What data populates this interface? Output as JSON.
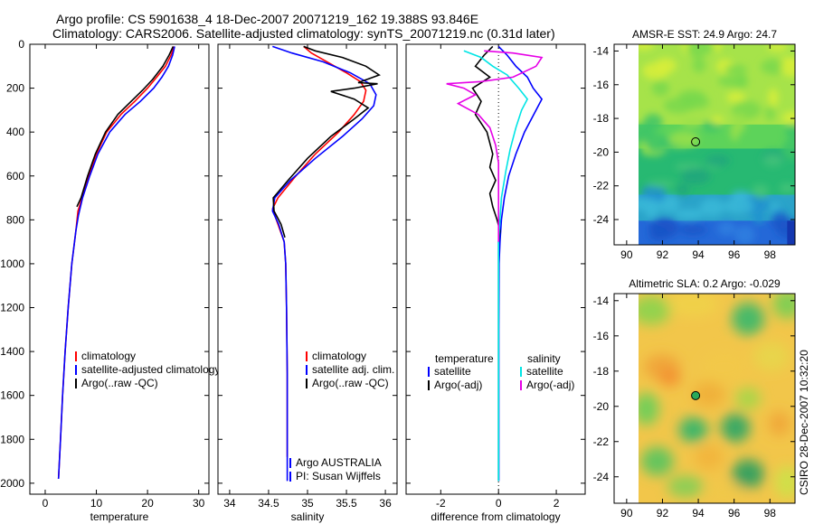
{
  "header": {
    "line1": "Argo profile: CS 5901638_4 18-Dec-2007 20071219_162 19.388S 93.846E",
    "line2": "Climatology: CARS2006. Satellite-adjusted climatology: synTS_20071219.nc (0.31d later)"
  },
  "side_text": "CSIRO 28-Dec-2007 10:32:20",
  "colors": {
    "climatology": "#ff0000",
    "satellite": "#0000ff",
    "argo": "#000000",
    "satellite_diff_salinity": "#00e5e5",
    "argo_diff_salinity": "#e600e6"
  },
  "chart_data": [
    {
      "type": "line",
      "xlabel": "temperature",
      "ylabel": "",
      "xlim": [
        -3,
        32
      ],
      "ylim": [
        2050,
        0
      ],
      "xticks": [
        "0",
        "10",
        "20",
        "30"
      ],
      "yticks": [
        "0",
        "200",
        "400",
        "600",
        "800",
        "1000",
        "1200",
        "1400",
        "1600",
        "1800",
        "2000"
      ],
      "legend": [
        "climatology",
        "satellite-adjusted climatology",
        "Argo(..raw -QC)"
      ],
      "legend_location": "lower-right",
      "series": [
        {
          "name": "climatology",
          "color": "#ff0000",
          "points": [
            [
              25.2,
              10
            ],
            [
              24.6,
              50
            ],
            [
              23.5,
              100
            ],
            [
              21.8,
              150
            ],
            [
              20.0,
              200
            ],
            [
              17.5,
              260
            ],
            [
              14.8,
              320
            ],
            [
              12.0,
              400
            ],
            [
              10.0,
              500
            ],
            [
              8.5,
              600
            ],
            [
              7.2,
              700
            ],
            [
              6.4,
              760
            ],
            [
              6.0,
              850
            ],
            [
              5.2,
              1000
            ],
            [
              4.5,
              1200
            ],
            [
              3.9,
              1400
            ],
            [
              3.4,
              1600
            ],
            [
              3.0,
              1800
            ],
            [
              2.6,
              1980
            ]
          ]
        },
        {
          "name": "satellite-adjusted climatology",
          "color": "#0000ff",
          "points": [
            [
              25.3,
              10
            ],
            [
              24.9,
              50
            ],
            [
              24.1,
              100
            ],
            [
              22.8,
              150
            ],
            [
              21.2,
              200
            ],
            [
              18.6,
              260
            ],
            [
              15.6,
              320
            ],
            [
              12.6,
              400
            ],
            [
              10.3,
              500
            ],
            [
              8.7,
              600
            ],
            [
              7.3,
              700
            ],
            [
              6.5,
              780
            ],
            [
              6.0,
              850
            ],
            [
              5.2,
              1000
            ],
            [
              4.5,
              1200
            ],
            [
              3.9,
              1400
            ],
            [
              3.4,
              1600
            ],
            [
              3.0,
              1800
            ],
            [
              2.6,
              1980
            ]
          ]
        },
        {
          "name": "Argo(..raw -QC)",
          "color": "#000000",
          "points": [
            [
              25.0,
              10
            ],
            [
              24.2,
              50
            ],
            [
              23.0,
              100
            ],
            [
              21.0,
              160
            ],
            [
              19.0,
              210
            ],
            [
              16.8,
              260
            ],
            [
              14.2,
              320
            ],
            [
              11.8,
              400
            ],
            [
              9.8,
              500
            ],
            [
              8.3,
              600
            ],
            [
              7.0,
              700
            ],
            [
              6.2,
              740
            ]
          ]
        }
      ],
      "annotations": []
    },
    {
      "type": "line",
      "xlabel": "salinity",
      "ylabel": "",
      "xlim": [
        33.85,
        36.15
      ],
      "ylim": [
        2050,
        0
      ],
      "xticks": [
        "34",
        "34.5",
        "35",
        "35.5",
        "36"
      ],
      "yticks": [],
      "legend": [
        "climatology",
        "satellite adj. clim.",
        "Argo(..raw -QC)"
      ],
      "legend_location": "lower-right",
      "series": [
        {
          "name": "climatology",
          "color": "#ff0000",
          "points": [
            [
              34.95,
              10
            ],
            [
              35.05,
              40
            ],
            [
              35.25,
              80
            ],
            [
              35.5,
              130
            ],
            [
              35.68,
              170
            ],
            [
              35.75,
              210
            ],
            [
              35.72,
              260
            ],
            [
              35.6,
              320
            ],
            [
              35.4,
              400
            ],
            [
              35.1,
              500
            ],
            [
              34.85,
              600
            ],
            [
              34.62,
              700
            ],
            [
              34.55,
              750
            ],
            [
              34.62,
              820
            ],
            [
              34.7,
              900
            ],
            [
              34.72,
              1000
            ],
            [
              34.73,
              1200
            ],
            [
              34.74,
              1500
            ],
            [
              34.74,
              1800
            ],
            [
              34.74,
              1880
            ]
          ]
        },
        {
          "name": "satellite adj. clim.",
          "color": "#0000ff",
          "points": [
            [
              34.55,
              10
            ],
            [
              34.8,
              40
            ],
            [
              35.2,
              80
            ],
            [
              35.55,
              130
            ],
            [
              35.8,
              180
            ],
            [
              35.88,
              230
            ],
            [
              35.85,
              280
            ],
            [
              35.7,
              340
            ],
            [
              35.45,
              420
            ],
            [
              35.1,
              520
            ],
            [
              34.78,
              620
            ],
            [
              34.58,
              700
            ],
            [
              34.55,
              760
            ],
            [
              34.63,
              820
            ],
            [
              34.7,
              900
            ],
            [
              34.72,
              1000
            ],
            [
              34.73,
              1200
            ],
            [
              34.74,
              1500
            ],
            [
              34.74,
              1800
            ],
            [
              34.74,
              1990
            ]
          ]
        },
        {
          "name": "Argo(..raw -QC)",
          "color": "#000000",
          "points": [
            [
              34.95,
              10
            ],
            [
              35.1,
              30
            ],
            [
              35.45,
              60
            ],
            [
              35.75,
              100
            ],
            [
              35.92,
              140
            ],
            [
              35.65,
              175
            ],
            [
              35.9,
              180
            ],
            [
              35.6,
              200
            ],
            [
              35.3,
              215
            ],
            [
              35.6,
              250
            ],
            [
              35.78,
              290
            ],
            [
              35.6,
              340
            ],
            [
              35.3,
              420
            ],
            [
              35.0,
              520
            ],
            [
              34.75,
              620
            ],
            [
              34.56,
              700
            ],
            [
              34.57,
              760
            ],
            [
              34.66,
              820
            ],
            [
              34.71,
              880
            ]
          ]
        }
      ],
      "annotations": [
        "Argo AUSTRALIA",
        "PI: Susan Wijffels"
      ]
    },
    {
      "type": "line",
      "xlabel": "difference from climatology",
      "ylabel": "",
      "xlim": [
        -3.2,
        3.0
      ],
      "ylim": [
        2050,
        0
      ],
      "xticks": [
        "-2",
        "0",
        "2"
      ],
      "yticks": [],
      "legend_titles": [
        "temperature",
        "salinity"
      ],
      "legend": [
        "satellite",
        "Argo(-adj)",
        "satellite",
        "Argo(-adj)"
      ],
      "legend_location": "lower-center",
      "series": [
        {
          "name": "temperature satellite",
          "color": "#0000ff",
          "points": [
            [
              0.0,
              10
            ],
            [
              0.3,
              50
            ],
            [
              0.6,
              100
            ],
            [
              1.0,
              150
            ],
            [
              1.2,
              200
            ],
            [
              1.5,
              250
            ],
            [
              1.3,
              300
            ],
            [
              0.9,
              400
            ],
            [
              0.6,
              500
            ],
            [
              0.35,
              600
            ],
            [
              0.2,
              700
            ],
            [
              0.1,
              800
            ],
            [
              0.05,
              900
            ],
            [
              0.02,
              1000
            ],
            [
              0.01,
              1300
            ],
            [
              0.01,
              1600
            ],
            [
              0.01,
              1990
            ]
          ]
        },
        {
          "name": "temperature Argo(-adj)",
          "color": "#000000",
          "points": [
            [
              -0.2,
              10
            ],
            [
              -0.5,
              50
            ],
            [
              -0.8,
              100
            ],
            [
              -0.3,
              150
            ],
            [
              -0.9,
              200
            ],
            [
              -0.6,
              260
            ],
            [
              -0.8,
              320
            ],
            [
              -0.4,
              400
            ],
            [
              -0.2,
              500
            ],
            [
              -0.3,
              560
            ],
            [
              -0.1,
              620
            ],
            [
              -0.3,
              680
            ],
            [
              -0.2,
              740
            ],
            [
              -0.05,
              800
            ],
            [
              0.05,
              850
            ],
            [
              0.0,
              900
            ],
            [
              0.0,
              1000
            ],
            [
              0.0,
              1300
            ],
            [
              0.0,
              1600
            ],
            [
              0.0,
              1990
            ]
          ]
        },
        {
          "name": "salinity satellite",
          "color": "#00e5e5",
          "points": [
            [
              -1.2,
              30
            ],
            [
              -0.6,
              60
            ],
            [
              -0.2,
              100
            ],
            [
              0.3,
              140
            ],
            [
              0.7,
              200
            ],
            [
              1.0,
              250
            ],
            [
              0.8,
              300
            ],
            [
              0.6,
              380
            ],
            [
              0.4,
              480
            ],
            [
              0.25,
              580
            ],
            [
              0.1,
              700
            ],
            [
              0.05,
              800
            ],
            [
              0.0,
              900
            ],
            [
              0.0,
              1200
            ],
            [
              0.0,
              1600
            ],
            [
              0.0,
              1990
            ]
          ]
        },
        {
          "name": "salinity Argo(-adj)",
          "color": "#e600e6",
          "points": [
            [
              -0.5,
              30
            ],
            [
              0.5,
              40
            ],
            [
              1.5,
              60
            ],
            [
              1.3,
              100
            ],
            [
              0.5,
              150
            ],
            [
              -0.6,
              170
            ],
            [
              -1.8,
              180
            ],
            [
              -1.2,
              200
            ],
            [
              -0.8,
              230
            ],
            [
              -1.4,
              270
            ],
            [
              -0.7,
              320
            ],
            [
              -0.3,
              380
            ],
            [
              -0.1,
              460
            ],
            [
              0.0,
              540
            ],
            [
              0.0,
              640
            ],
            [
              0.0,
              800
            ],
            [
              0.0,
              900
            ]
          ]
        }
      ],
      "annotations": []
    },
    {
      "type": "heatmap",
      "title": "AMSR-E SST: 24.9 Argo: 24.7",
      "xlim": [
        89.3,
        99.4
      ],
      "ylim": [
        -25.5,
        -13.6
      ],
      "xticks": [
        "90",
        "92",
        "94",
        "96",
        "98"
      ],
      "yticks": [
        "-14",
        "-16",
        "-18",
        "-20",
        "-22",
        "-24"
      ],
      "marker": {
        "x": 93.85,
        "y": -19.39
      }
    },
    {
      "type": "heatmap",
      "title": "Altimetric SLA: 0.2 Argo: -0.029",
      "xlim": [
        89.3,
        99.4
      ],
      "ylim": [
        -25.5,
        -13.6
      ],
      "xticks": [
        "90",
        "92",
        "94",
        "96",
        "98"
      ],
      "yticks": [
        "-14",
        "-16",
        "-18",
        "-20",
        "-22",
        "-24"
      ],
      "marker": {
        "x": 93.85,
        "y": -19.39
      }
    }
  ]
}
